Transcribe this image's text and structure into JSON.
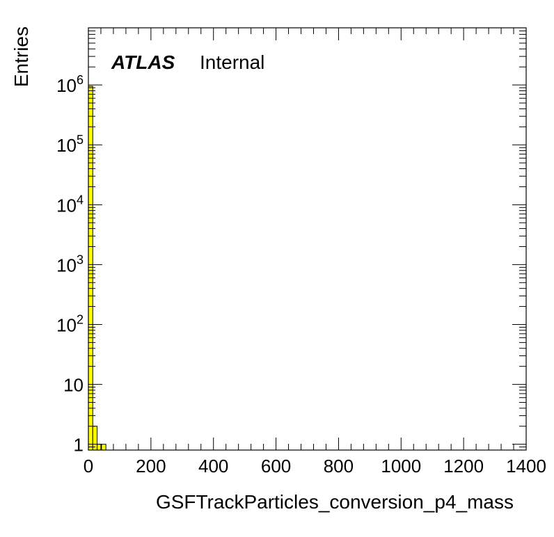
{
  "chart_data": {
    "type": "bar",
    "subtype": "histogram",
    "label": {
      "experiment": "ATLAS",
      "status": "Internal"
    },
    "xlabel": "GSFTrackParticles_conversion_p4_mass",
    "ylabel": "Entries",
    "xlim": [
      0,
      1400
    ],
    "ylim": [
      0.8,
      9000000
    ],
    "yscale": "log",
    "x_ticks": [
      "0",
      "200",
      "400",
      "600",
      "800",
      "1000",
      "1200",
      "1400"
    ],
    "y_ticks": [
      {
        "value": 1,
        "base": "1",
        "exp": ""
      },
      {
        "value": 10,
        "base": "10",
        "exp": ""
      },
      {
        "value": 100,
        "base": "10",
        "exp": "2"
      },
      {
        "value": 1000,
        "base": "10",
        "exp": "3"
      },
      {
        "value": 10000,
        "base": "10",
        "exp": "4"
      },
      {
        "value": 100000,
        "base": "10",
        "exp": "5"
      },
      {
        "value": 1000000,
        "base": "10",
        "exp": "6"
      }
    ],
    "bin_width": 14,
    "bins": [
      {
        "x_low": 0,
        "x_high": 14,
        "value": 950000
      },
      {
        "x_low": 14,
        "x_high": 28,
        "value": 2
      },
      {
        "x_low": 28,
        "x_high": 42,
        "value": 1
      },
      {
        "x_low": 42,
        "x_high": 56,
        "value": 1
      }
    ],
    "fill_color": "#ffff00",
    "line_color": "#000000",
    "grid": false
  }
}
